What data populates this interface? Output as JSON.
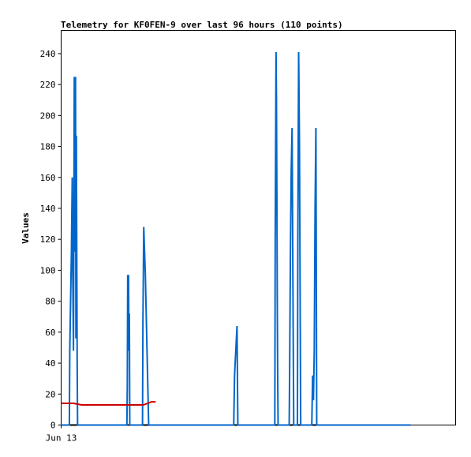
{
  "chart_data": {
    "type": "line",
    "title": "Telemetry for KF0FEN-9 over last 96 hours (110 points)",
    "ylabel": "Values",
    "xlabel": "",
    "x_tick_labels": [
      {
        "label": "Jun 13",
        "x": 0
      }
    ],
    "xlim": [
      0,
      96
    ],
    "ylim": [
      0,
      255
    ],
    "y_ticks": [
      0,
      20,
      40,
      60,
      80,
      100,
      120,
      140,
      160,
      180,
      200,
      220,
      240
    ],
    "grid": false,
    "legend": "none",
    "series": [
      {
        "color": "#0066cc",
        "points": [
          [
            0,
            0
          ],
          [
            2.0,
            0
          ],
          [
            2.1,
            48
          ],
          [
            2.3,
            80
          ],
          [
            2.5,
            112
          ],
          [
            2.7,
            160
          ],
          [
            2.8,
            104
          ],
          [
            3.0,
            48
          ],
          [
            3.2,
            225
          ],
          [
            3.4,
            112
          ],
          [
            3.5,
            225
          ],
          [
            3.6,
            56
          ],
          [
            3.7,
            187
          ],
          [
            3.8,
            112
          ],
          [
            3.9,
            40
          ],
          [
            4.0,
            0
          ],
          [
            16.0,
            0
          ],
          [
            16.1,
            24
          ],
          [
            16.2,
            97
          ],
          [
            16.3,
            72
          ],
          [
            16.4,
            97
          ],
          [
            16.5,
            48
          ],
          [
            16.6,
            72
          ],
          [
            16.7,
            0
          ],
          [
            19.8,
            0
          ],
          [
            19.9,
            64
          ],
          [
            20.1,
            128
          ],
          [
            20.3,
            112
          ],
          [
            20.5,
            96
          ],
          [
            20.7,
            72
          ],
          [
            20.9,
            48
          ],
          [
            21.1,
            24
          ],
          [
            21.3,
            0
          ],
          [
            42.0,
            0
          ],
          [
            42.1,
            16
          ],
          [
            42.2,
            32
          ],
          [
            42.5,
            48
          ],
          [
            42.8,
            64
          ],
          [
            43.0,
            0
          ],
          [
            52.0,
            0
          ],
          [
            52.1,
            120
          ],
          [
            52.3,
            241
          ],
          [
            52.4,
            210
          ],
          [
            52.5,
            150
          ],
          [
            52.6,
            80
          ],
          [
            52.7,
            30
          ],
          [
            52.8,
            0
          ],
          [
            55.5,
            0
          ],
          [
            55.6,
            32
          ],
          [
            55.8,
            112
          ],
          [
            56.0,
            165
          ],
          [
            56.2,
            192
          ],
          [
            56.3,
            145
          ],
          [
            56.4,
            96
          ],
          [
            56.6,
            0
          ],
          [
            57.5,
            0
          ],
          [
            57.6,
            120
          ],
          [
            57.8,
            241
          ],
          [
            58.0,
            180
          ],
          [
            58.1,
            120
          ],
          [
            58.2,
            60
          ],
          [
            58.3,
            0
          ],
          [
            61.0,
            0
          ],
          [
            61.2,
            32
          ],
          [
            61.4,
            16
          ],
          [
            61.6,
            48
          ],
          [
            61.8,
            140
          ],
          [
            62.0,
            192
          ],
          [
            62.2,
            0
          ],
          [
            85.0,
            0
          ]
        ]
      },
      {
        "color": "#cc0000",
        "points": [
          [
            0,
            14
          ],
          [
            3,
            14
          ],
          [
            5,
            13
          ],
          [
            20,
            13
          ],
          [
            21,
            14
          ],
          [
            22,
            15
          ],
          [
            23,
            15
          ]
        ]
      }
    ]
  }
}
